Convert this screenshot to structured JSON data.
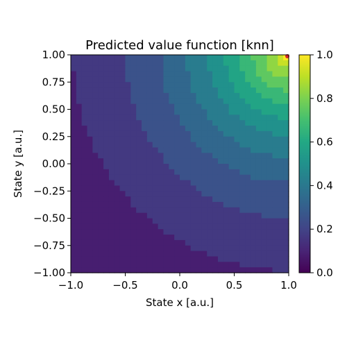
{
  "chart_data": {
    "type": "heatmap",
    "title": "Predicted value function [knn]",
    "xlabel": "State x [a.u.]",
    "ylabel": "State y [a.u.]",
    "xlim": [
      -1.0,
      1.0
    ],
    "ylim": [
      -1.0,
      1.0
    ],
    "x_ticks": [
      "−1.0",
      "−0.5",
      "0.0",
      "0.5",
      "1.0"
    ],
    "y_ticks": [
      "−1.00",
      "−0.75",
      "−0.50",
      "−0.25",
      "0.00",
      "0.25",
      "0.50",
      "0.75",
      "1.00"
    ],
    "colorbar": {
      "range": [
        0.0,
        1.0
      ],
      "ticks": [
        "0.0",
        "0.2",
        "0.4",
        "0.6",
        "0.8",
        "1.0"
      ],
      "colormap": "viridis"
    },
    "value_model": "approximately discrete bands increasing toward the top-right corner (1,1); max 1.0 at (1,1), min ~0.02 at (-1,-1)",
    "goal_marker": {
      "x": 1.0,
      "y": 1.0,
      "color": "#d62728"
    },
    "grid": false
  }
}
